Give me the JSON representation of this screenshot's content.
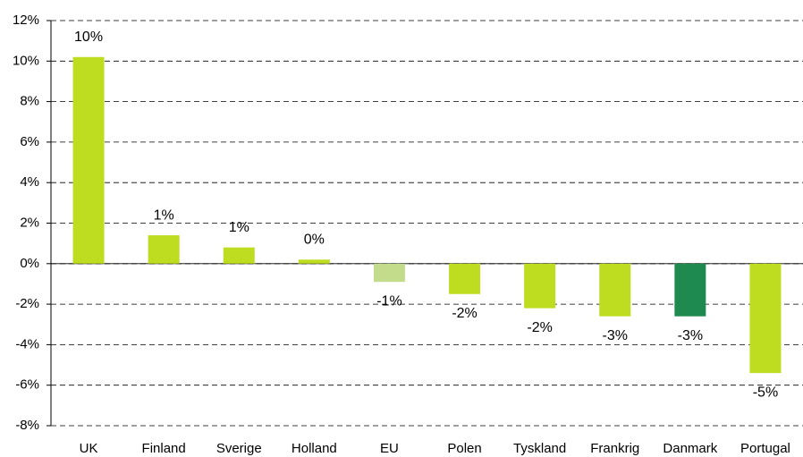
{
  "chart_data": {
    "type": "bar",
    "categories": [
      "UK",
      "Finland",
      "Sverige",
      "Holland",
      "EU",
      "Polen",
      "Tyskland",
      "Frankrig",
      "Danmark",
      "Portugal"
    ],
    "values": [
      10.2,
      1.4,
      0.8,
      0.2,
      -0.9,
      -1.5,
      -2.2,
      -2.6,
      -2.6,
      -5.4
    ],
    "value_labels": [
      "10%",
      "1%",
      "1%",
      "0%",
      "-1%",
      "-2%",
      "-2%",
      "-3%",
      "-3%",
      "-5%"
    ],
    "colors": [
      "#bedc20",
      "#bedc20",
      "#bedc20",
      "#bedc20",
      "#c3dc8c",
      "#bedc20",
      "#bedc20",
      "#bedc20",
      "#1e8a50",
      "#bedc20"
    ],
    "ylim": [
      -8,
      12
    ],
    "yticks": [
      {
        "value": -8,
        "label": "-8%"
      },
      {
        "value": -6,
        "label": "-6%"
      },
      {
        "value": -4,
        "label": "-4%"
      },
      {
        "value": -2,
        "label": "-2%"
      },
      {
        "value": 0,
        "label": "0%"
      },
      {
        "value": 2,
        "label": "2%"
      },
      {
        "value": 4,
        "label": "4%"
      },
      {
        "value": 6,
        "label": "6%"
      },
      {
        "value": 8,
        "label": "8%"
      },
      {
        "value": 10,
        "label": "10%"
      },
      {
        "value": 12,
        "label": "12%"
      }
    ],
    "grid": true
  }
}
